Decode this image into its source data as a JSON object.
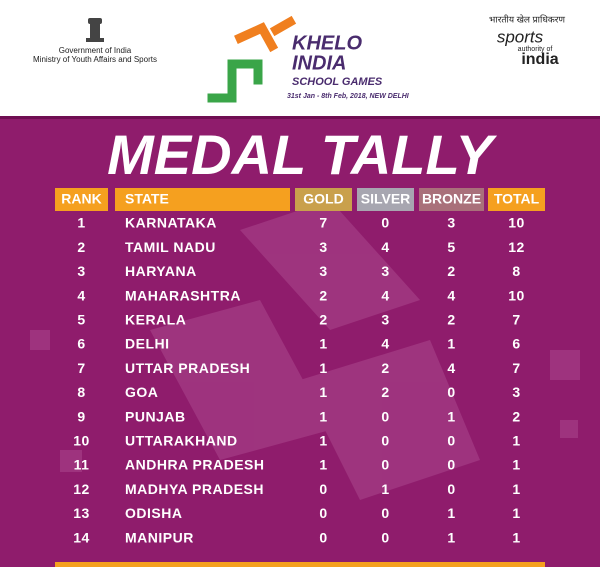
{
  "header": {
    "left": {
      "line1": "Government of India",
      "line2": "Ministry of Youth Affairs and Sports"
    },
    "center": {
      "title1": "KHELO",
      "title2": "INDIA",
      "subtitle": "SCHOOL GAMES",
      "dates": "31st Jan - 8th Feb, 2018, NEW DELHI"
    },
    "right": {
      "hindi": "भारतीय खेल प्राधिकरण",
      "word1": "sports",
      "word2": "authority of",
      "word3": "india"
    }
  },
  "title": "MEDAL TALLY",
  "table": {
    "columns": [
      "RANK",
      "STATE",
      "GOLD",
      "SILVER",
      "BRONZE",
      "TOTAL"
    ],
    "rows": [
      [
        1,
        "KARNATAKA",
        7,
        0,
        3,
        10
      ],
      [
        2,
        "TAMIL NADU",
        3,
        4,
        5,
        12
      ],
      [
        3,
        "HARYANA",
        3,
        3,
        2,
        8
      ],
      [
        4,
        "MAHARASHTRA",
        2,
        4,
        4,
        10
      ],
      [
        5,
        "KERALA",
        2,
        3,
        2,
        7
      ],
      [
        6,
        "DELHI",
        1,
        4,
        1,
        6
      ],
      [
        7,
        "UTTAR PRADESH",
        1,
        2,
        4,
        7
      ],
      [
        8,
        "GOA",
        1,
        2,
        0,
        3
      ],
      [
        9,
        "PUNJAB",
        1,
        0,
        1,
        2
      ],
      [
        10,
        "UTTARAKHAND",
        1,
        0,
        0,
        1
      ],
      [
        11,
        "ANDHRA PRADESH",
        1,
        0,
        0,
        1
      ],
      [
        12,
        "MADHYA PRADESH",
        0,
        1,
        0,
        1
      ],
      [
        13,
        "ODISHA",
        0,
        0,
        1,
        1
      ],
      [
        14,
        "MANIPUR",
        0,
        0,
        1,
        1
      ]
    ]
  }
}
